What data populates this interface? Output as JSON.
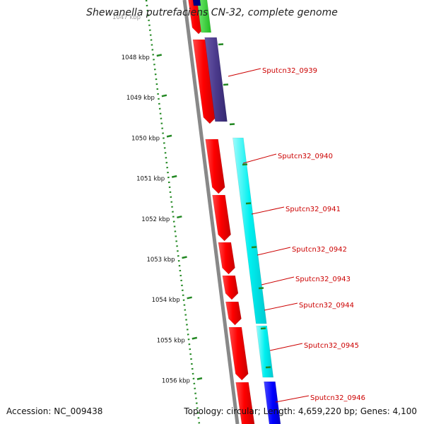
{
  "title": "Shewanella putrefaciens CN-32, complete genome",
  "accession": "Accession: NC_009438",
  "summary": "Topology: circular; Length: 4,659,220 bp; Genes: 4,100",
  "ruler": {
    "unit": "kbp",
    "top_partial_label": "1047 kbp",
    "ticks": [
      "1048 kbp",
      "1049 kbp",
      "1050 kbp",
      "1051 kbp",
      "1052 kbp",
      "1053 kbp",
      "1054 kbp",
      "1055 kbp",
      "1056 kbp"
    ]
  },
  "genes": [
    "Sputcn32_0939",
    "Sputcn32_0940",
    "Sputcn32_0941",
    "Sputcn32_0942",
    "Sputcn32_0943",
    "Sputcn32_0944",
    "Sputcn32_0945",
    "Sputcn32_0946"
  ],
  "colors": {
    "cds": "#ff0000",
    "cog_purple": "#4b3a8c",
    "cog_cyan": "#00ffff",
    "cog_green": "#33dd33",
    "cog_blue": "#0000ff",
    "cog_navy": "#000080",
    "backbone": "#888888",
    "ruler": "#228822",
    "label": "#cc0000"
  }
}
